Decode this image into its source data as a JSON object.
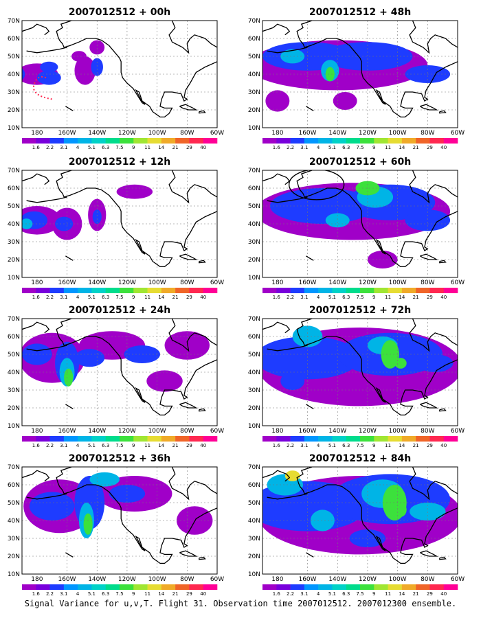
{
  "caption": "Signal Variance for u,v,T. Flight 31. Observation time 2007012512. 2007012300 ensemble.",
  "map_extent": {
    "lon_min": 170,
    "lon_max": 300,
    "lat_min": 10,
    "lat_max": 70
  },
  "lat_labels": [
    "10N",
    "20N",
    "30N",
    "40N",
    "50N",
    "60N",
    "70N"
  ],
  "lon_labels": [
    "180",
    "160W",
    "140W",
    "120W",
    "100W",
    "80W",
    "60W"
  ],
  "colorbar": {
    "labels": [
      "1.6",
      "2.2",
      "3.1",
      "4",
      "5.1",
      "6.3",
      "7.5",
      "9",
      "11",
      "14",
      "21",
      "29",
      "40"
    ],
    "colors": [
      "#a000c8",
      "#7800dc",
      "#1e3cff",
      "#0096ff",
      "#00b4e6",
      "#00d2c8",
      "#00dc8c",
      "#3ce13c",
      "#a0e632",
      "#e6dc32",
      "#f0aa28",
      "#f06428",
      "#ff2850",
      "#ff0096"
    ]
  },
  "panels": [
    {
      "title": "2007012512 + 00h",
      "blobs": [
        [
          180,
          40,
          14,
          6,
          0
        ],
        [
          188,
          38,
          8,
          4,
          1
        ],
        [
          188,
          44,
          6,
          3,
          1
        ],
        [
          167,
          40,
          5,
          4,
          1
        ],
        [
          165,
          34,
          5,
          3,
          1
        ],
        [
          212,
          42,
          7,
          8,
          0
        ],
        [
          220,
          44,
          4,
          5,
          1
        ],
        [
          208,
          50,
          5,
          3,
          0
        ],
        [
          220,
          55,
          5,
          4,
          0
        ]
      ]
    },
    {
      "title": "2007012512 + 12h",
      "blobs": [
        [
          180,
          42,
          16,
          8,
          0
        ],
        [
          200,
          40,
          10,
          9,
          0
        ],
        [
          178,
          42,
          9,
          5,
          1
        ],
        [
          173,
          40,
          4,
          3,
          2
        ],
        [
          198,
          40,
          6,
          4,
          1
        ],
        [
          220,
          45,
          6,
          9,
          0
        ],
        [
          220,
          44,
          3,
          4,
          1
        ],
        [
          245,
          58,
          12,
          4,
          0
        ]
      ]
    },
    {
      "title": "2007012512 + 24h",
      "blobs": [
        [
          190,
          48,
          22,
          14,
          0
        ],
        [
          230,
          55,
          22,
          8,
          0
        ],
        [
          280,
          55,
          15,
          8,
          0
        ],
        [
          180,
          50,
          10,
          6,
          1
        ],
        [
          200,
          45,
          8,
          12,
          1
        ],
        [
          200,
          40,
          5,
          8,
          2
        ],
        [
          201,
          37,
          3,
          5,
          3
        ],
        [
          215,
          48,
          10,
          5,
          1
        ],
        [
          250,
          50,
          12,
          5,
          1
        ],
        [
          265,
          35,
          12,
          6,
          0
        ]
      ]
    },
    {
      "title": "2007012512 + 36h",
      "blobs": [
        [
          195,
          48,
          24,
          15,
          0
        ],
        [
          245,
          55,
          25,
          10,
          0
        ],
        [
          285,
          40,
          12,
          8,
          0
        ],
        [
          190,
          48,
          15,
          8,
          1
        ],
        [
          215,
          50,
          10,
          15,
          1
        ],
        [
          213,
          40,
          5,
          10,
          2
        ],
        [
          214,
          38,
          3,
          6,
          3
        ],
        [
          240,
          55,
          12,
          5,
          1
        ],
        [
          225,
          63,
          10,
          4,
          2
        ]
      ]
    },
    {
      "title": "2007012512 + 48h",
      "blobs": [
        [
          220,
          45,
          60,
          14,
          0
        ],
        [
          180,
          25,
          8,
          6,
          0
        ],
        [
          225,
          25,
          8,
          5,
          0
        ],
        [
          200,
          50,
          30,
          8,
          1
        ],
        [
          240,
          50,
          30,
          8,
          1
        ],
        [
          190,
          50,
          8,
          4,
          2
        ],
        [
          215,
          42,
          6,
          6,
          2
        ],
        [
          215,
          40,
          3,
          4,
          3
        ],
        [
          280,
          40,
          15,
          5,
          1
        ]
      ]
    },
    {
      "title": "2007012512 + 60h",
      "blobs": [
        [
          230,
          47,
          65,
          16,
          0
        ],
        [
          250,
          20,
          10,
          5,
          0
        ],
        [
          210,
          50,
          35,
          10,
          1
        ],
        [
          255,
          52,
          30,
          10,
          1
        ],
        [
          245,
          55,
          12,
          6,
          2
        ],
        [
          240,
          60,
          8,
          4,
          3
        ],
        [
          220,
          42,
          8,
          4,
          2
        ],
        [
          280,
          42,
          15,
          6,
          1
        ]
      ]
    },
    {
      "title": "2007012512 + 72h",
      "blobs": [
        [
          235,
          43,
          68,
          22,
          0
        ],
        [
          200,
          48,
          35,
          12,
          1
        ],
        [
          255,
          50,
          35,
          12,
          1
        ],
        [
          250,
          55,
          10,
          5,
          2
        ],
        [
          255,
          50,
          6,
          8,
          3
        ],
        [
          262,
          45,
          4,
          3,
          3
        ],
        [
          200,
          60,
          10,
          6,
          2
        ],
        [
          285,
          45,
          12,
          5,
          1
        ],
        [
          190,
          35,
          8,
          5,
          1
        ]
      ]
    },
    {
      "title": "2007012512 + 84h",
      "blobs": [
        [
          235,
          43,
          68,
          22,
          0
        ],
        [
          200,
          48,
          40,
          14,
          1
        ],
        [
          255,
          52,
          40,
          14,
          1
        ],
        [
          250,
          55,
          14,
          8,
          2
        ],
        [
          258,
          50,
          8,
          10,
          3
        ],
        [
          262,
          46,
          4,
          4,
          3
        ],
        [
          185,
          60,
          12,
          6,
          2
        ],
        [
          190,
          65,
          5,
          3,
          4
        ],
        [
          210,
          40,
          8,
          6,
          2
        ],
        [
          280,
          45,
          12,
          5,
          2
        ],
        [
          240,
          30,
          12,
          5,
          1
        ]
      ]
    }
  ]
}
